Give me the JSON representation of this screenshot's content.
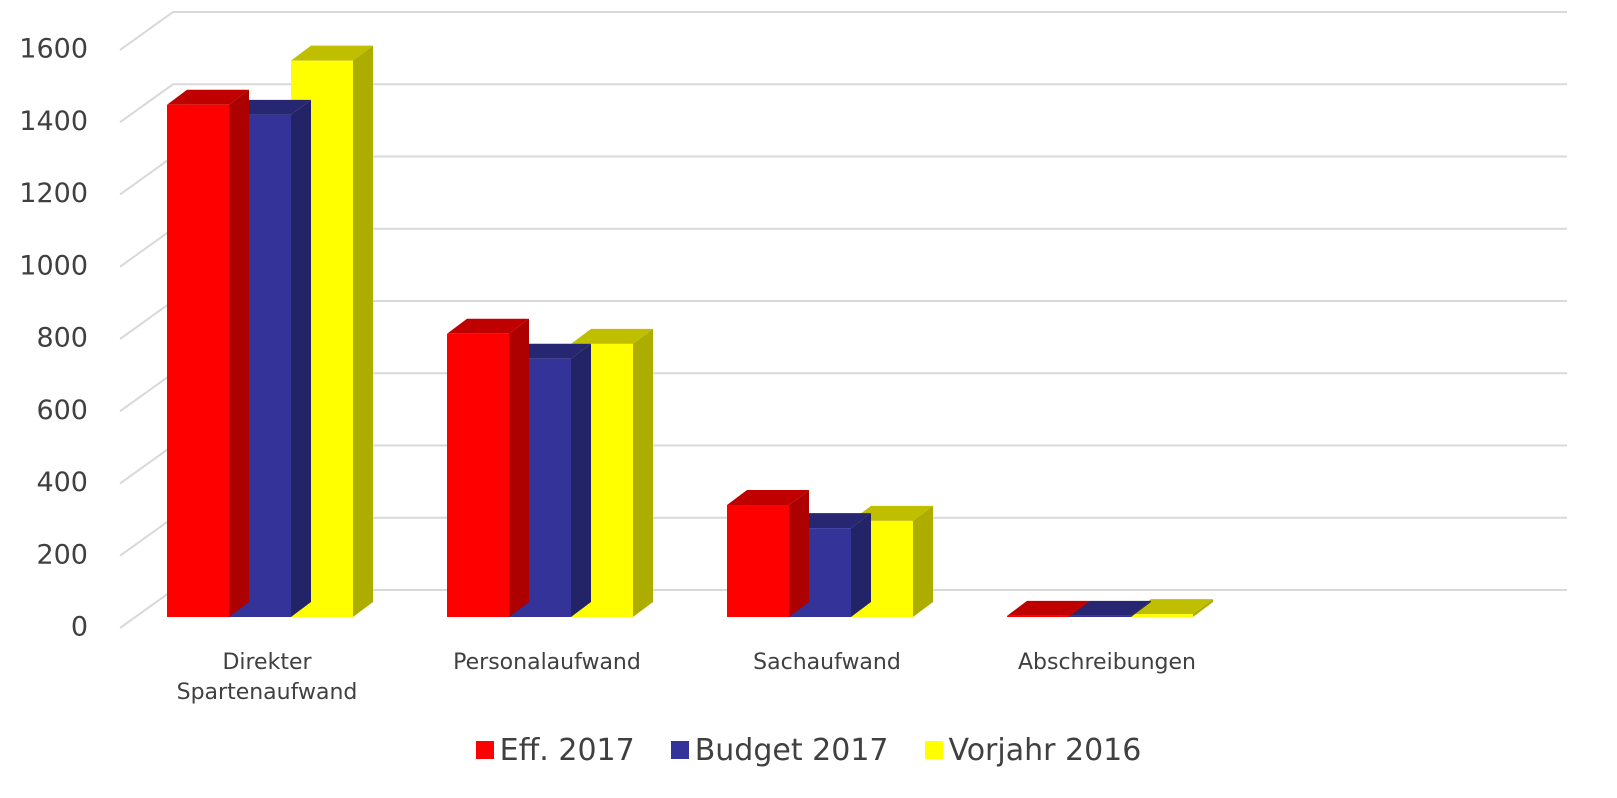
{
  "chart_data": {
    "type": "bar3d",
    "categories": [
      "Direkter Spartenaufwand",
      "Personalaufwand",
      "Sachaufwand",
      "Abschreibungen",
      null
    ],
    "series": [
      {
        "name": "Eff. 2017",
        "color": "#ff0000",
        "values": [
          1418,
          784,
          310,
          3,
          null
        ]
      },
      {
        "name": "Budget 2017",
        "color": "#333399",
        "values": [
          1390,
          715,
          246,
          3,
          null
        ]
      },
      {
        "name": "Vorjahr 2016",
        "color": "#ffff00",
        "values": [
          1540,
          756,
          266,
          8,
          null
        ]
      }
    ],
    "ylim": [
      0,
      1600
    ],
    "yticks": [
      0,
      200,
      400,
      600,
      800,
      1000,
      1200,
      1400,
      1600
    ],
    "grid": true,
    "legend": "bottom"
  }
}
